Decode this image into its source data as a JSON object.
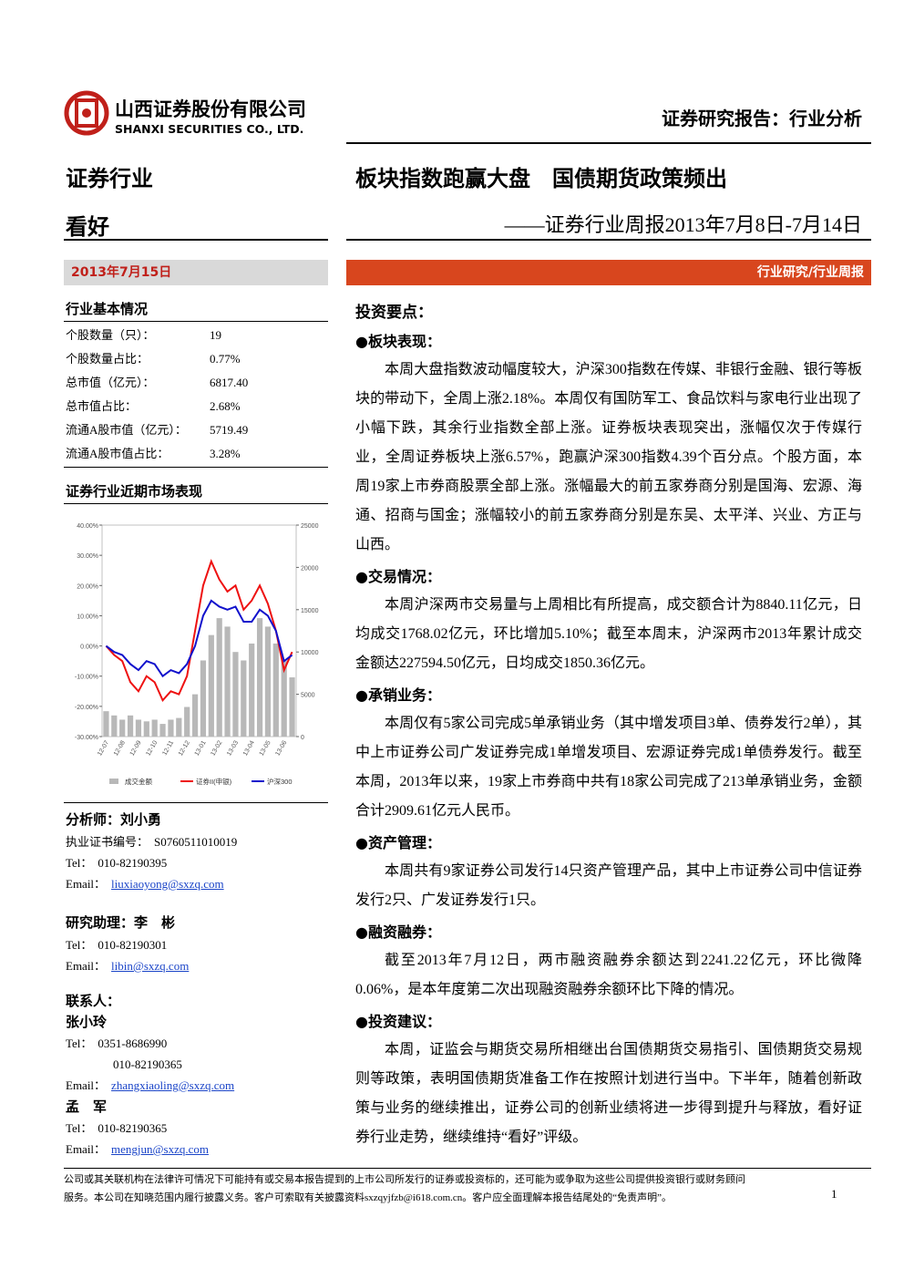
{
  "header": {
    "company_cn": "山西证券股份有限公司",
    "company_en": "SHANXI SECURITIES CO., LTD.",
    "report_type": "证券研究报告：行业分析"
  },
  "sidebar": {
    "industry": "证券行业",
    "rating": "看好",
    "date": "2013年7月15日",
    "basic_title": "行业基本情况",
    "basic_rows": [
      [
        "个股数量（只）：",
        "19"
      ],
      [
        "个股数量占比：",
        "0.77%"
      ],
      [
        "总市值（亿元）：",
        "6817.40"
      ],
      [
        "总市值占比：",
        "2.68%"
      ],
      [
        "流通A股市值（亿元）：",
        "5719.49"
      ],
      [
        "流通A股市值占比：",
        "3.28%"
      ]
    ],
    "chart_title": "证券行业近期市场表现",
    "analyst": {
      "title": "分析师：刘小勇",
      "lines": [
        [
          "执业证书编号：",
          "S0760511010019"
        ],
        [
          "Tel：",
          "010-82190395"
        ],
        [
          "Email：",
          "liuxiaoyong@sxzq.com"
        ]
      ]
    },
    "assistant": {
      "title": "研究助理：李　彬",
      "lines": [
        [
          "Tel：",
          "010-82190301"
        ],
        [
          "Email：",
          "libin@sxzq.com"
        ]
      ]
    },
    "contacts_title": "联系人：",
    "contacts": [
      {
        "name": "张小玲",
        "lines": [
          [
            "Tel：",
            "0351-8686990"
          ],
          [
            "010-82190365"
          ],
          [
            "Email：",
            "zhangxiaoling@sxzq.com"
          ]
        ]
      },
      {
        "name": "孟　军",
        "lines": [
          [
            "Tel：",
            "010-82190365"
          ],
          [
            "Email：",
            "mengjun@sxzq.com"
          ]
        ]
      }
    ]
  },
  "chart": {
    "type": "combo",
    "categories": [
      "12-07",
      null,
      "12-08",
      null,
      "12-09",
      null,
      "12-10",
      null,
      "12-11",
      null,
      "12-12",
      null,
      "13-01",
      null,
      "13-02",
      null,
      "13-03",
      null,
      "13-04",
      null,
      "13-05",
      null,
      "13-06",
      null
    ],
    "series": [
      {
        "name": "成交金额",
        "color": "#b8b8b8",
        "axis": "y2",
        "values": [
          3000,
          2500,
          2000,
          2500,
          2000,
          1800,
          2000,
          1500,
          2000,
          2200,
          3500,
          5000,
          9000,
          12000,
          14000,
          13000,
          10000,
          9000,
          11000,
          14000,
          13000,
          11000,
          9000,
          7000
        ]
      },
      {
        "name": "证券II(申银)",
        "color": "#ee1111",
        "values": [
          0,
          -3,
          -5,
          -12,
          -15,
          -10,
          -12,
          -18,
          -15,
          -16,
          -10,
          5,
          20,
          28,
          22,
          18,
          20,
          12,
          15,
          20,
          14,
          5,
          -8,
          -2
        ]
      },
      {
        "name": "沪深300",
        "color": "#1111cc",
        "values": [
          0,
          -2,
          -3,
          -6,
          -8,
          -5,
          -6,
          -10,
          -8,
          -9,
          -6,
          0,
          10,
          15,
          13,
          12,
          13,
          8,
          8,
          12,
          10,
          5,
          -5,
          -3
        ]
      }
    ],
    "ylim": [
      -30,
      40
    ],
    "yticks": [
      {
        "value": 40,
        "label": "40.00%"
      },
      {
        "value": 30,
        "label": "30.00%"
      },
      {
        "value": 20,
        "label": "20.00%"
      },
      {
        "value": 10,
        "label": "10.00%"
      },
      {
        "value": 0,
        "label": "0.00%"
      },
      {
        "value": -10,
        "label": "-10.00%"
      },
      {
        "value": -20,
        "label": "-20.00%"
      },
      {
        "value": -30,
        "label": "-30.00%"
      }
    ],
    "y2lim": [
      0,
      25000
    ],
    "y2ticks": [
      0,
      5000,
      10000,
      15000,
      20000,
      25000
    ]
  },
  "main": {
    "title": "板块指数跑赢大盘　国债期货政策频出",
    "subtitle": "——证券行业周报2013年7月8日-7月14日",
    "tag": "行业研究/行业周报",
    "key_points": "投资要点：",
    "sections": [
      {
        "heading": "●板块表现：",
        "paragraphs": [
          "本周大盘指数波动幅度较大，沪深300指数在传媒、非银行金融、银行等板块的带动下，全周上涨2.18%。本周仅有国防军工、食品饮料与家电行业出现了小幅下跌，其余行业指数全部上涨。证券板块表现突出，涨幅仅次于传媒行业，全周证券板块上涨6.57%，跑赢沪深300指数4.39个百分点。个股方面，本周19家上市券商股票全部上涨。涨幅最大的前五家券商分别是国海、宏源、海通、招商与国金；涨幅较小的前五家券商分别是东吴、太平洋、兴业、方正与山西。"
        ]
      },
      {
        "heading": "●交易情况：",
        "paragraphs": [
          "本周沪深两市交易量与上周相比有所提高，成交额合计为8840.11亿元，日均成交1768.02亿元，环比增加5.10%；截至本周末，沪深两市2013年累计成交金额达227594.50亿元，日均成交1850.36亿元。"
        ]
      },
      {
        "heading": "●承销业务：",
        "paragraphs": [
          "本周仅有5家公司完成5单承销业务（其中增发项目3单、债券发行2单），其中上市证券公司广发证券完成1单增发项目、宏源证券完成1单债券发行。截至本周，2013年以来，19家上市券商中共有18家公司完成了213单承销业务，金额合计2909.61亿元人民币。"
        ]
      },
      {
        "heading": "●资产管理：",
        "paragraphs": [
          "本周共有9家证券公司发行14只资产管理产品，其中上市证券公司中信证券发行2只、广发证券发行1只。"
        ]
      },
      {
        "heading": "●融资融券：",
        "paragraphs": [
          "截至2013年7月12日，两市融资融券余额达到2241.22亿元，环比微降0.06%，是本年度第二次出现融资融券余额环比下降的情况。"
        ]
      },
      {
        "heading": "●投资建议：",
        "paragraphs": [
          "本周，证监会与期货交易所相继出台国债期货交易指引、国债期货交易规则等政策，表明国债期货准备工作在按照计划进行当中。下半年，随着创新政策与业务的继续推出，证券公司的创新业绩将进一步得到提升与释放，看好证券行业走势，继续维持“看好”评级。"
        ]
      }
    ]
  },
  "footer": {
    "lines": [
      "公司或其关联机构在法律许可情况下可能持有或交易本报告提到的上市公司所发行的证券或投资标的，还可能为或争取为这些公司提供投资银行或财务顾问",
      "服务。本公司在知晓范围内履行披露义务。客户可索取有关披露资料sxzqyjfzb@i618.com.cn。客户应全面理解本报告结尾处的“免责声明”。"
    ],
    "page": "1"
  }
}
